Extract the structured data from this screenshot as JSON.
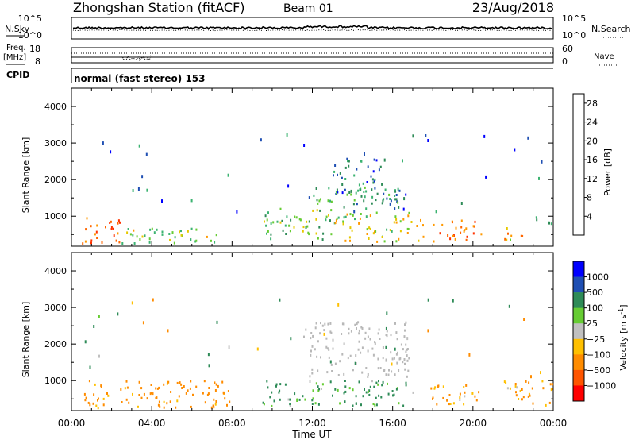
{
  "header": {
    "station": "Zhongshan Station (fitACF)",
    "beam": "Beam 01",
    "date": "23/Aug/2018"
  },
  "top_panel": {
    "left_label": "N.Sky",
    "left_tick_high": "10^5",
    "left_tick_low": "10^0",
    "right_tick_high": "10^5",
    "right_tick_low": "10^0",
    "right_label": "N.Search"
  },
  "freq_panel": {
    "left_label_1": "Freq.",
    "left_label_2": "[MHz]",
    "left_tick_high": "18",
    "left_tick_low": "8",
    "right_tick_high": "60",
    "right_tick_low": "0",
    "right_label": "Nave"
  },
  "cpid_panel": {
    "label": "CPID",
    "value": "normal (fast stereo) 153"
  },
  "colors": {
    "ground_scatter": "#b8b8b8",
    "power_scale": [
      "#0000ff",
      "#1f4fb3",
      "#2e8b57",
      "#3cb371",
      "#66cc33",
      "#e6c800",
      "#ff9900",
      "#ff6600",
      "#ff3300",
      "#e60000"
    ],
    "velocity_scale": [
      "#ff0000",
      "#ff5500",
      "#ff8c00",
      "#ffc000",
      "#c0c0c0",
      "#66cc33",
      "#2e8b57",
      "#1f4fb3",
      "#0000ff"
    ]
  },
  "chart_data": [
    {
      "type": "heatmap",
      "name": "power",
      "xlabel": "",
      "ylabel": "Slant Range [km]",
      "x_ticks": [
        "00:00",
        "04:00",
        "08:00",
        "12:00",
        "16:00",
        "20:00",
        "00:00"
      ],
      "xlim_hours": [
        0,
        24
      ],
      "y_ticks": [
        1000,
        2000,
        3000,
        4000
      ],
      "ylim": [
        180,
        4500
      ],
      "colorbar": {
        "label": "Power [dB]",
        "ticks": [
          4,
          8,
          12,
          16,
          20,
          24,
          28
        ],
        "range": [
          0,
          30
        ]
      },
      "scatter_regions": [
        {
          "t0": 0.5,
          "t1": 2.5,
          "r0": 250,
          "r1": 1000,
          "value": 22
        },
        {
          "t0": 2.5,
          "t1": 7.5,
          "r0": 250,
          "r1": 700,
          "value": 14
        },
        {
          "t0": 9.5,
          "t1": 13.0,
          "r0": 350,
          "r1": 1200,
          "value": 12
        },
        {
          "t0": 11.8,
          "t1": 16.5,
          "r0": 1200,
          "r1": 1800,
          "value": 10
        },
        {
          "t0": 13.0,
          "t1": 15.5,
          "r0": 1600,
          "r1": 2600,
          "value": 7
        },
        {
          "t0": 13.0,
          "t1": 17.5,
          "r0": 300,
          "r1": 1100,
          "value": 16
        },
        {
          "t0": 15.8,
          "t1": 16.8,
          "r0": 1200,
          "r1": 1700,
          "value": 6
        },
        {
          "t0": 18.0,
          "t1": 20.5,
          "r0": 300,
          "r1": 900,
          "value": 22
        },
        {
          "t0": 21.5,
          "t1": 22.5,
          "r0": 300,
          "r1": 800,
          "value": 18
        },
        {
          "t0": 23.0,
          "t1": 24.0,
          "r0": 700,
          "r1": 1000,
          "value": 12
        }
      ]
    },
    {
      "type": "heatmap",
      "name": "velocity",
      "xlabel": "Time UT",
      "ylabel": "Slant Range [km]",
      "x_ticks": [
        "00:00",
        "04:00",
        "08:00",
        "12:00",
        "16:00",
        "20:00",
        "00:00"
      ],
      "xlim_hours": [
        0,
        24
      ],
      "y_ticks": [
        1000,
        2000,
        3000,
        4000
      ],
      "ylim": [
        180,
        4500
      ],
      "colorbar": {
        "label": "Velocity [m s",
        "label_sup": "-1",
        "label_close": "]",
        "ticks": [
          "1000",
          "500",
          "100",
          "25",
          "−25",
          "−100",
          "−500",
          "−1000"
        ]
      },
      "scatter_regions": [
        {
          "t0": 0.5,
          "t1": 8.0,
          "r0": 250,
          "r1": 1000,
          "value": -200,
          "kind": "ionospheric"
        },
        {
          "t0": 9.5,
          "t1": 17.0,
          "r0": 300,
          "r1": 1000,
          "value": 150,
          "kind": "ionospheric"
        },
        {
          "t0": 11.5,
          "t1": 16.8,
          "r0": 1100,
          "r1": 2600,
          "value": 0,
          "kind": "ground"
        },
        {
          "t0": 17.8,
          "t1": 20.5,
          "r0": 300,
          "r1": 900,
          "value": -150,
          "kind": "ionospheric"
        },
        {
          "t0": 21.5,
          "t1": 24.0,
          "r0": 300,
          "r1": 1000,
          "value": -150,
          "kind": "ionospheric"
        }
      ]
    }
  ]
}
